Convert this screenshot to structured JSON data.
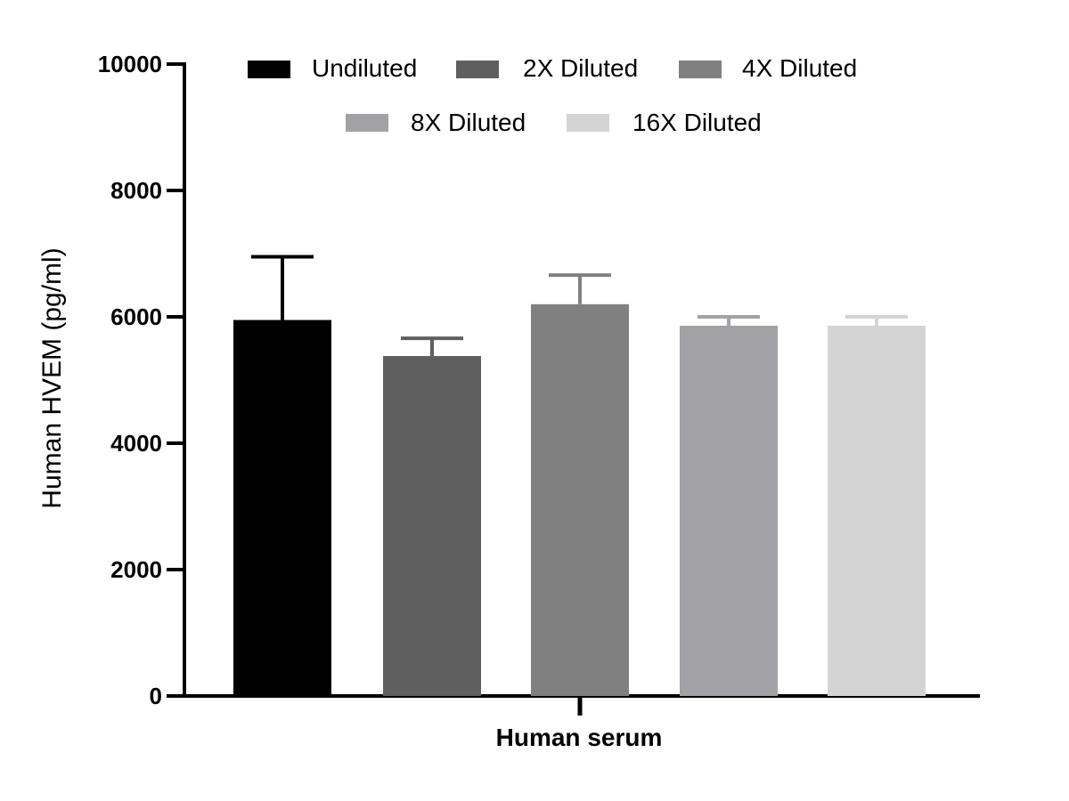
{
  "chart_data": {
    "type": "bar",
    "title": "",
    "xlabel": "Human serum",
    "ylabel": "Human HVEM (pg/ml)",
    "ylim": [
      0,
      10000
    ],
    "yticks": [
      0,
      2000,
      4000,
      6000,
      8000,
      10000
    ],
    "ytick_labels": [
      "0",
      "2000",
      "4000",
      "6000",
      "8000",
      "10000"
    ],
    "categories": [
      "Human serum"
    ],
    "legend_position": "top",
    "grid": false,
    "series": [
      {
        "name": "Undiluted",
        "values": [
          5950
        ],
        "error": [
          1000
        ],
        "color": "#000000"
      },
      {
        "name": "2X Diluted",
        "values": [
          5380
        ],
        "error": [
          280
        ],
        "color": "#5f5f5f"
      },
      {
        "name": "4X Diluted",
        "values": [
          6200
        ],
        "error": [
          460
        ],
        "color": "#808080"
      },
      {
        "name": "8X Diluted",
        "values": [
          5860
        ],
        "error": [
          140
        ],
        "color": "#a2a1a6"
      },
      {
        "name": "16X Diluted",
        "values": [
          5860
        ],
        "error": [
          140
        ],
        "color": "#d4d4d4"
      }
    ]
  }
}
